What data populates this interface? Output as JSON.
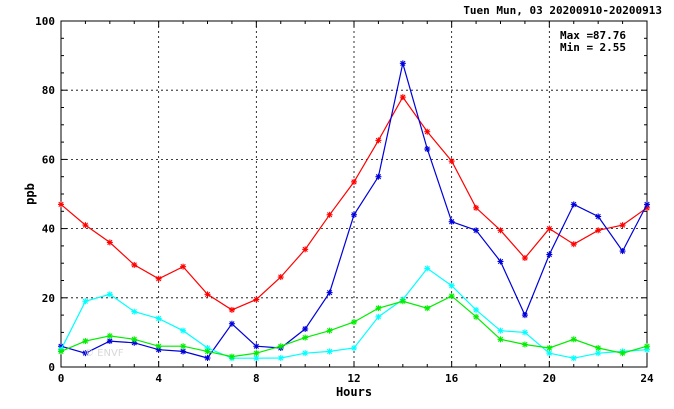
{
  "chart_data": {
    "type": "line",
    "title": "Tuen Mun, 03 20200910-20200913",
    "xlabel": "Hours",
    "ylabel": "ppb",
    "xlim": [
      0,
      24
    ],
    "ylim": [
      0,
      100
    ],
    "xticks": [
      0,
      4,
      8,
      12,
      16,
      20,
      24
    ],
    "yticks": [
      0,
      20,
      40,
      60,
      80,
      100
    ],
    "grid": true,
    "stats": {
      "max_label": "Max =",
      "max_value": "87.76",
      "min_label": "Min =",
      "min_value": "2.55"
    },
    "watermark": "© ENVF",
    "x": [
      0,
      1,
      2,
      3,
      4,
      5,
      6,
      7,
      8,
      9,
      10,
      11,
      12,
      13,
      14,
      15,
      16,
      17,
      18,
      19,
      20,
      21,
      22,
      23,
      24
    ],
    "series": [
      {
        "color": "#ff0000",
        "values": [
          47,
          41,
          36,
          29.5,
          25.5,
          29,
          21,
          16.5,
          19.5,
          26,
          34,
          44,
          53.5,
          65.5,
          78,
          68,
          59.5,
          46,
          39.5,
          31.5,
          40,
          35.5,
          39.5,
          41,
          46
        ]
      },
      {
        "color": "#0000dd",
        "values": [
          6,
          4,
          7.5,
          7,
          5,
          4.5,
          2.6,
          12.5,
          6,
          5.5,
          11,
          21.5,
          44,
          55,
          87.76,
          63,
          42,
          39.5,
          30.5,
          15,
          32.5,
          47,
          43.5,
          33.5,
          47
        ]
      },
      {
        "color": "#00ffff",
        "values": [
          5,
          19,
          21,
          16,
          14,
          10.5,
          5.5,
          2.55,
          2.55,
          2.6,
          4,
          4.5,
          5.5,
          14.5,
          19.5,
          28.5,
          23.5,
          16.5,
          10.5,
          10,
          4,
          2.55,
          4,
          4.5,
          5
        ]
      },
      {
        "color": "#00ee00",
        "values": [
          4.5,
          7.5,
          9,
          8,
          6,
          6,
          4.5,
          3,
          4,
          6,
          8.5,
          10.5,
          13,
          17,
          19,
          17,
          20.5,
          14.5,
          8,
          6.5,
          5.5,
          8,
          5.5,
          4,
          6
        ]
      }
    ]
  }
}
